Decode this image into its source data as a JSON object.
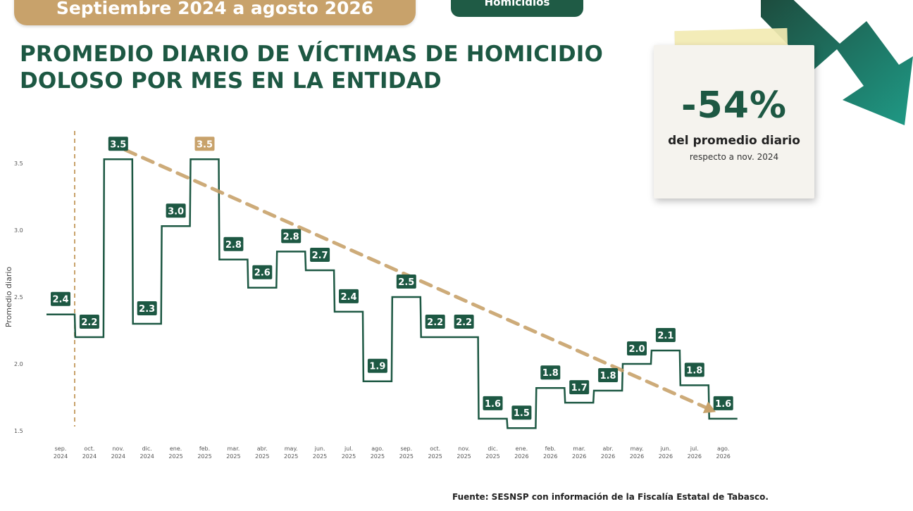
{
  "header": {
    "banner": "Septiembre 2024 a agosto 2026",
    "pill": "Homicidios"
  },
  "title_line1": "PROMEDIO DIARIO DE VÍCTIMAS DE HOMICIDIO",
  "title_line2": "DOLOSO POR MES EN LA ENTIDAD",
  "note": {
    "percent": "-54%",
    "line1": "del promedio diario",
    "line2": "respecto a nov. 2024"
  },
  "source": "Fuente: SESNSP con información de la Fiscalía Estatal de Tabasco.",
  "colors": {
    "green": "#1d5843",
    "gold": "#c8a26b"
  },
  "chart_data": {
    "type": "line",
    "style": "step",
    "title": "PROMEDIO DIARIO DE VÍCTIMAS DE HOMICIDIO DOLOSO POR MES EN LA ENTIDAD",
    "xlabel": "",
    "ylabel": "Promedio diario",
    "ylim": [
      1.45,
      3.65
    ],
    "yticks": [
      "1.5",
      "2.0",
      "2.5",
      "3.0",
      "3.5"
    ],
    "grid": false,
    "categories": [
      [
        "sep.",
        "2024"
      ],
      [
        "oct.",
        "2024"
      ],
      [
        "nov.",
        "2024"
      ],
      [
        "dic.",
        "2024"
      ],
      [
        "ene.",
        "2025"
      ],
      [
        "feb.",
        "2025"
      ],
      [
        "mar.",
        "2025"
      ],
      [
        "abr.",
        "2025"
      ],
      [
        "may.",
        "2025"
      ],
      [
        "jun.",
        "2025"
      ],
      [
        "jul.",
        "2025"
      ],
      [
        "ago.",
        "2025"
      ],
      [
        "sep.",
        "2025"
      ],
      [
        "oct.",
        "2025"
      ],
      [
        "nov.",
        "2025"
      ],
      [
        "dic.",
        "2025"
      ],
      [
        "ene.",
        "2026"
      ],
      [
        "feb.",
        "2026"
      ],
      [
        "mar.",
        "2026"
      ],
      [
        "abr.",
        "2026"
      ],
      [
        "may.",
        "2026"
      ],
      [
        "jun.",
        "2026"
      ],
      [
        "jul.",
        "2026"
      ],
      [
        "ago.",
        "2026"
      ]
    ],
    "values": [
      2.37,
      2.2,
      3.53,
      2.3,
      3.03,
      3.53,
      2.78,
      2.57,
      2.84,
      2.7,
      2.39,
      1.87,
      2.5,
      2.2,
      2.2,
      1.59,
      1.52,
      1.82,
      1.71,
      1.8,
      2.0,
      2.1,
      1.84,
      1.59
    ],
    "data_labels": [
      "2.4",
      "2.2",
      "3.5",
      "2.3",
      "3.0",
      "3.5",
      "2.8",
      "2.6",
      "2.8",
      "2.7",
      "2.4",
      "1.9",
      "2.5",
      "2.2",
      "2.2",
      "1.6",
      "1.5",
      "1.8",
      "1.7",
      "1.8",
      "2.0",
      "2.1",
      "1.8",
      "1.6"
    ],
    "highlight_index": 5,
    "trend": {
      "from_index": 2,
      "to_index": 23,
      "from_value": 3.6,
      "to_value": 1.7
    },
    "annotation_vline_index": 0
  }
}
